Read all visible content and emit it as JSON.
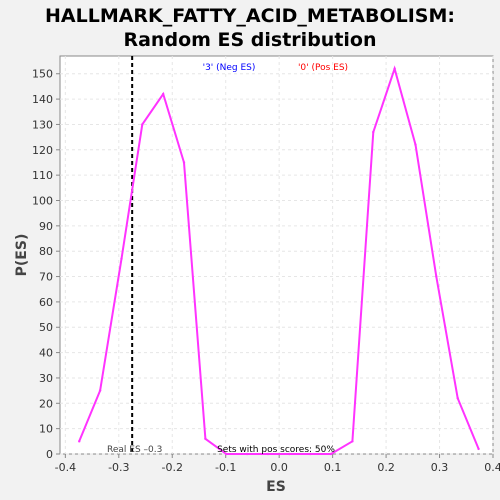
{
  "chart_data": {
    "type": "line",
    "title_line1": "HALLMARK_FATTY_ACID_METABOLISM:",
    "title_line2": "Random ES distribution",
    "xlabel": "ES",
    "ylabel": "P(ES)",
    "xlim": [
      -0.41,
      0.4
    ],
    "ylim": [
      0,
      157
    ],
    "xticks": [
      -0.4,
      -0.3,
      -0.2,
      -0.1,
      0.0,
      0.1,
      0.2,
      0.3,
      0.4
    ],
    "xtick_labels": [
      "-0.4",
      "-0.3",
      "-0.2",
      "-0.1",
      "0.0",
      "0.1",
      "0.2",
      "0.3",
      "0.4"
    ],
    "yticks": [
      0,
      10,
      20,
      30,
      40,
      50,
      60,
      70,
      80,
      90,
      100,
      110,
      120,
      130,
      140,
      150
    ],
    "ytick_labels": [
      "0",
      "10",
      "20",
      "30",
      "40",
      "50",
      "60",
      "70",
      "80",
      "90",
      "100",
      "110",
      "120",
      "130",
      "140",
      "150"
    ],
    "grid": true,
    "series": [
      {
        "color": "#ff33ff",
        "x": [
          -0.374,
          -0.335,
          -0.295,
          -0.256,
          -0.217,
          -0.178,
          -0.138,
          -0.099,
          -0.06,
          -0.021,
          0.019,
          0.058,
          0.097,
          0.137,
          0.176,
          0.216,
          0.255,
          0.294,
          0.334,
          0.373
        ],
        "y": [
          5,
          25,
          77,
          130,
          142,
          115,
          6,
          0,
          0,
          0,
          0,
          0,
          0,
          5,
          127,
          152,
          122,
          70,
          22,
          2
        ]
      }
    ],
    "real_es": {
      "x": -0.275,
      "label": "Real ES –0.3"
    },
    "legend": {
      "neg_label": "'3' (Neg ES)",
      "neg_color": "#0000ff",
      "pos_label": "'0' (Pos ES)",
      "pos_color": "#ff0000"
    },
    "annotation": "Sets with pos scores: 50%",
    "colors": {
      "plot_bg": "#ffffff",
      "page_bg": "#f2f2f2",
      "grid": "#e6e6e6",
      "axis": "#888888"
    }
  }
}
